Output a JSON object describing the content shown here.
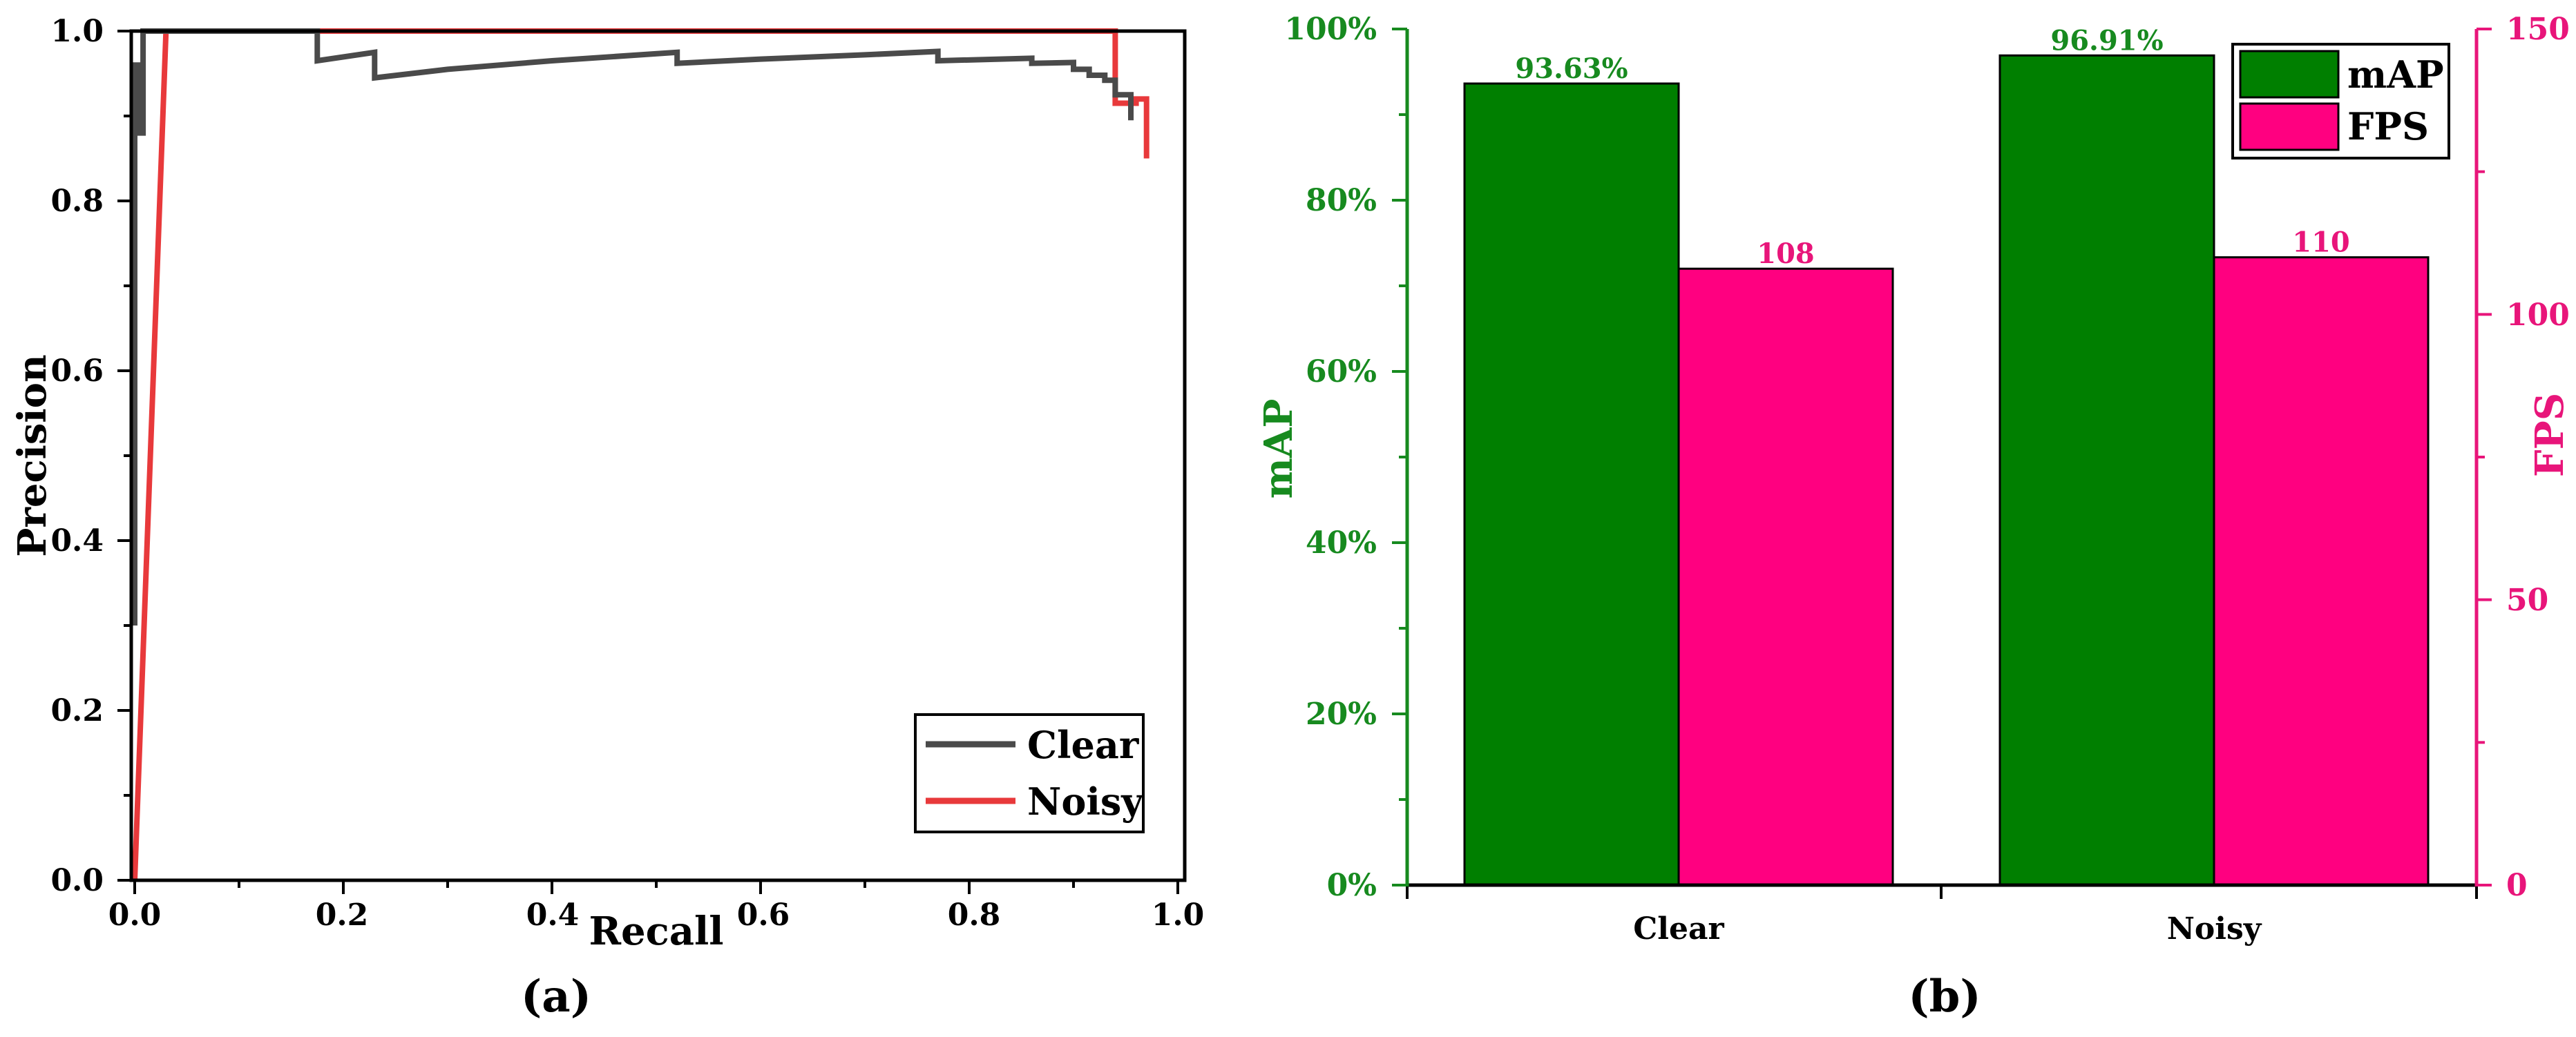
{
  "chart_data": [
    {
      "type": "line",
      "panel_label": "(a)",
      "xlabel": "Recall",
      "ylabel": "Precision",
      "xlim": [
        0,
        1
      ],
      "ylim": [
        0,
        1
      ],
      "xticks": [
        "0.0",
        "0.2",
        "0.4",
        "0.6",
        "0.8",
        "1.0"
      ],
      "yticks": [
        "0.0",
        "0.2",
        "0.4",
        "0.6",
        "0.8",
        "1.0"
      ],
      "legend_position": "bottom-right",
      "series": [
        {
          "name": "Clear",
          "color": "#4a4a4a",
          "x": [
            0.0,
            0.0,
            0.005,
            0.005,
            0.008,
            0.008,
            0.175,
            0.175,
            0.23,
            0.23,
            0.3,
            0.4,
            0.52,
            0.52,
            0.6,
            0.7,
            0.77,
            0.77,
            0.86,
            0.86,
            0.9,
            0.9,
            0.915,
            0.915,
            0.93,
            0.93,
            0.94,
            0.94,
            0.955,
            0.955
          ],
          "y": [
            0.3,
            0.96,
            0.96,
            0.88,
            0.88,
            1.0,
            1.0,
            0.965,
            0.975,
            0.945,
            0.955,
            0.965,
            0.975,
            0.962,
            0.967,
            0.972,
            0.976,
            0.965,
            0.968,
            0.962,
            0.963,
            0.955,
            0.955,
            0.948,
            0.948,
            0.942,
            0.942,
            0.925,
            0.925,
            0.895
          ]
        },
        {
          "name": "Noisy",
          "color": "#e8393b",
          "x": [
            0.0,
            0.03,
            0.94,
            0.94,
            0.96,
            0.96,
            0.97,
            0.97
          ],
          "y": [
            0.0,
            1.0,
            1.0,
            0.915,
            0.915,
            0.92,
            0.92,
            0.85
          ]
        }
      ]
    },
    {
      "type": "bar",
      "panel_label": "(b)",
      "categories": [
        "Clear",
        "Noisy"
      ],
      "ylabel_left": "mAP",
      "ylabel_right": "FPS",
      "ylim_left": [
        0,
        100
      ],
      "ylim_right": [
        0,
        150
      ],
      "yticks_left": [
        "0%",
        "20%",
        "40%",
        "60%",
        "80%",
        "100%"
      ],
      "yticks_right": [
        "0",
        "50",
        "100",
        "150"
      ],
      "legend_position": "top-right",
      "series": [
        {
          "name": "mAP",
          "axis": "left",
          "color": "#007f00",
          "values": [
            93.63,
            96.91
          ],
          "value_labels": [
            "93.63%",
            "96.91%"
          ]
        },
        {
          "name": "FPS",
          "axis": "right",
          "color": "#ff0080",
          "values": [
            108,
            110
          ],
          "value_labels": [
            "108",
            "110"
          ]
        }
      ]
    }
  ],
  "colors": {
    "axis": "#000000",
    "map_axis": "#178a1f",
    "fps_axis": "#e8157a"
  }
}
